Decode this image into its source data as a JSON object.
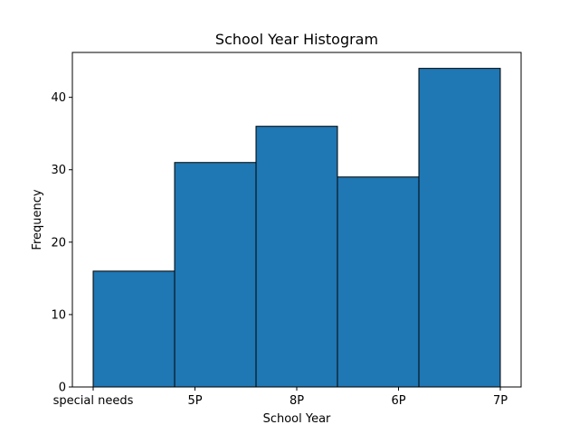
{
  "chart_data": {
    "type": "bar",
    "title": "School Year Histogram",
    "xlabel": "School Year",
    "ylabel": "Frequency",
    "categories": [
      "special needs",
      "5P",
      "8P",
      "6P",
      "7P"
    ],
    "values": [
      16,
      31,
      36,
      29,
      44
    ],
    "x_ticks": [
      "special needs",
      "5P",
      "8P",
      "6P",
      "7P"
    ],
    "y_ticks": [
      0,
      10,
      20,
      30,
      40
    ],
    "ylim": [
      0,
      46.2
    ],
    "grid": false,
    "bar_color": "#1f77b4",
    "edge_color": "#000000"
  }
}
